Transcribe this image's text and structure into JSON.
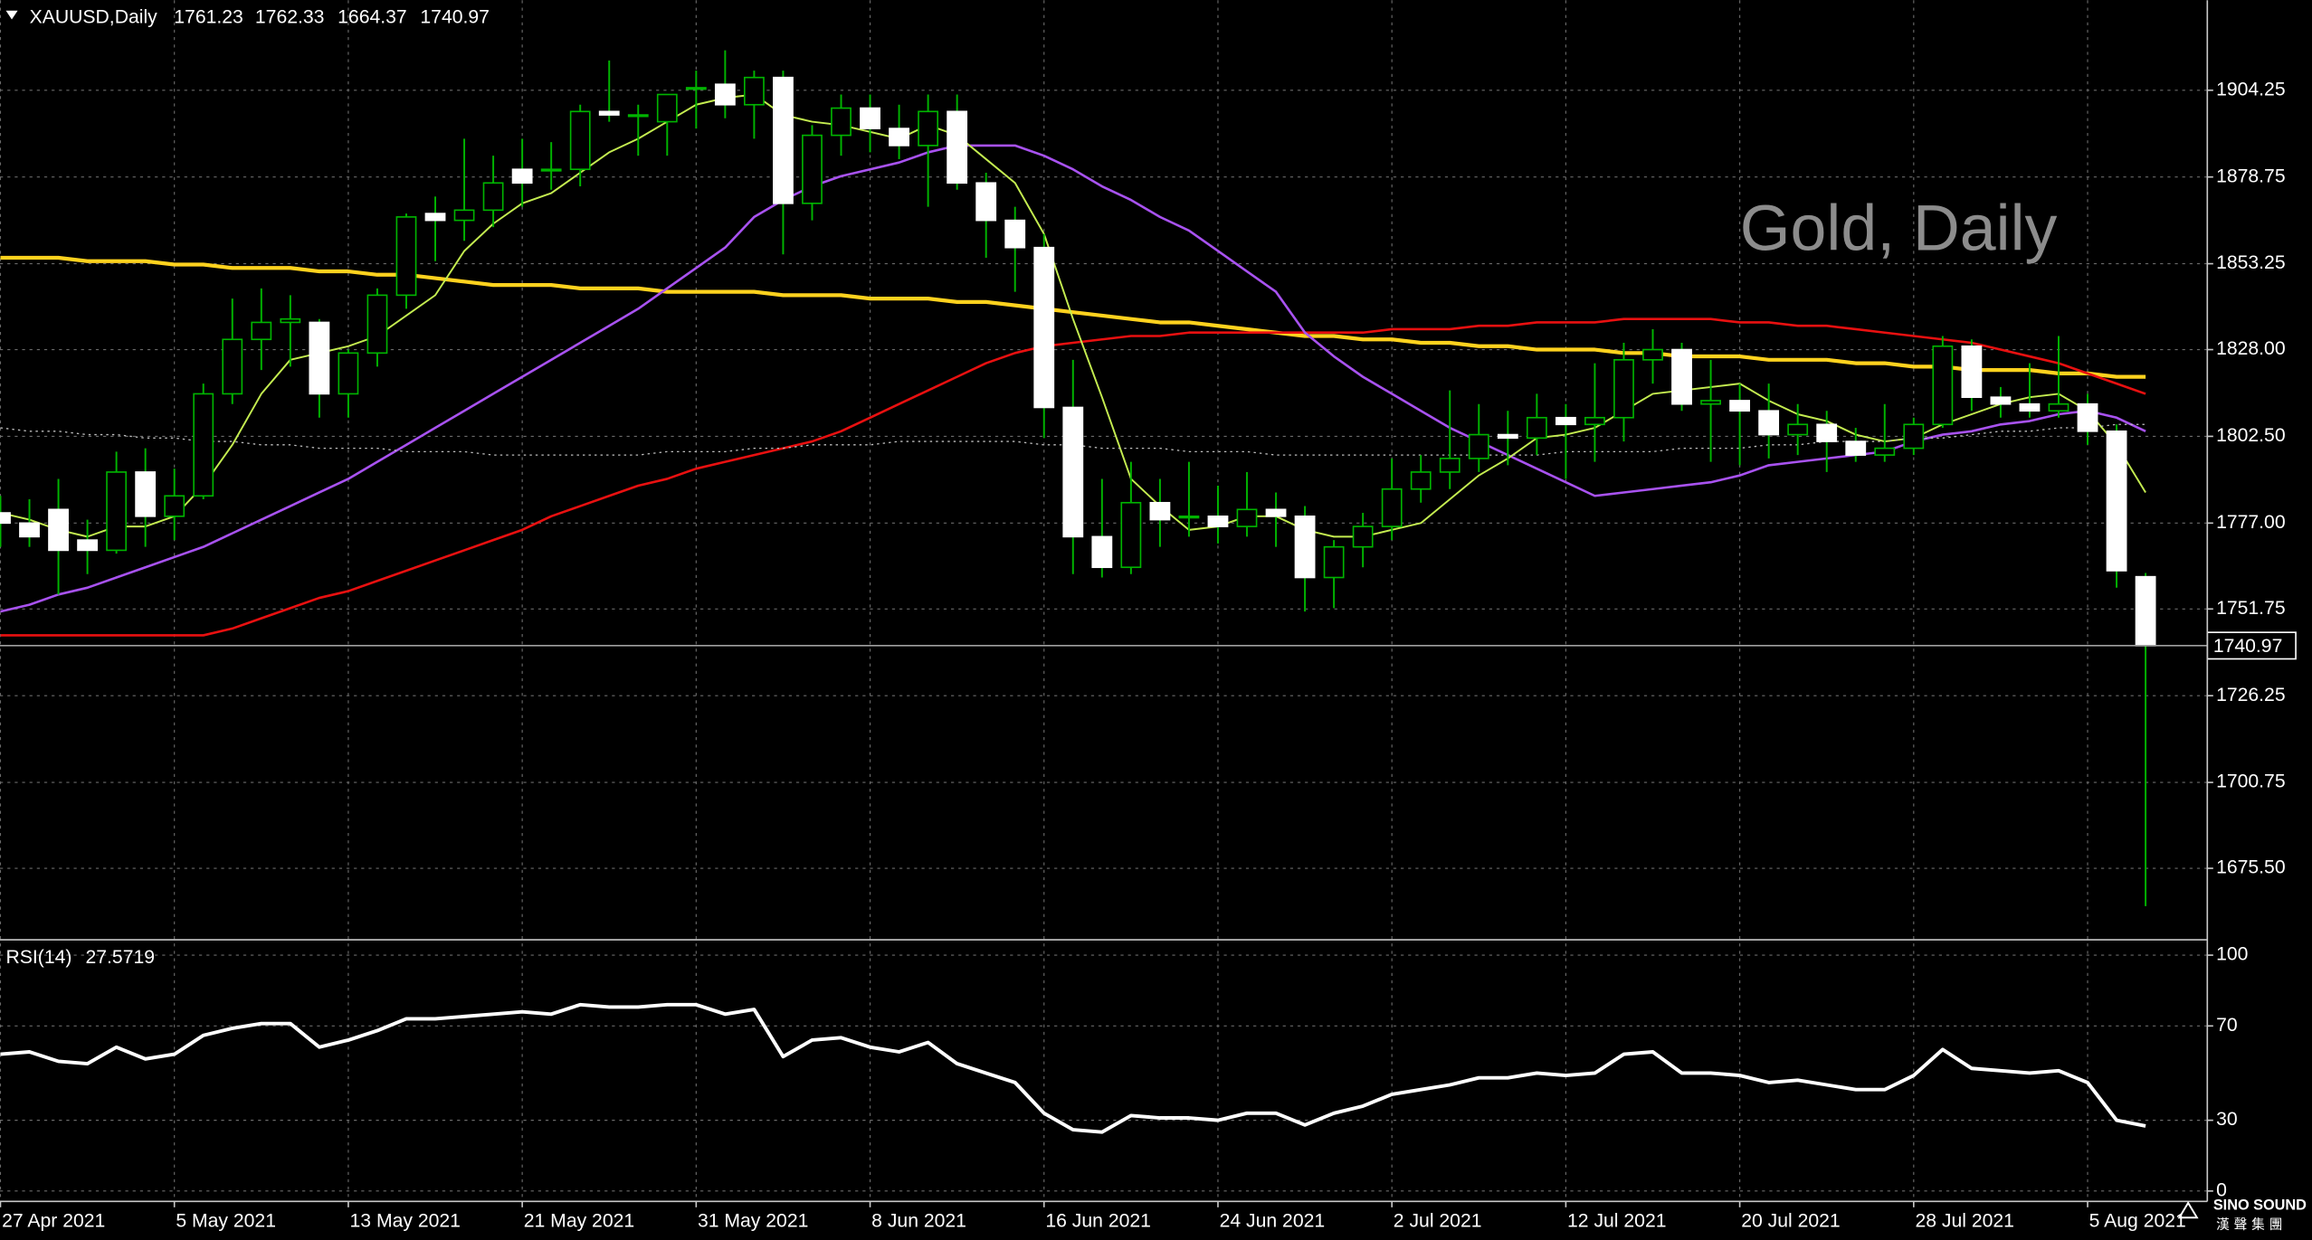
{
  "chart_data": [
    {
      "type": "candlestick",
      "title": "XAUUSD,Daily",
      "watermark": "Gold, Daily",
      "categories": [
        "27 Apr 2021",
        null,
        null,
        null,
        null,
        null,
        "5 May 2021",
        null,
        null,
        null,
        null,
        null,
        "13 May 2021",
        null,
        null,
        null,
        null,
        null,
        "21 May 2021",
        null,
        null,
        null,
        null,
        null,
        "31 May 2021",
        null,
        null,
        null,
        null,
        null,
        "8 Jun 2021",
        null,
        null,
        null,
        null,
        null,
        "16 Jun 2021",
        null,
        null,
        null,
        null,
        null,
        "24 Jun 2021",
        null,
        null,
        null,
        null,
        null,
        "2 Jul 2021",
        null,
        null,
        null,
        null,
        null,
        "12 Jul 2021",
        null,
        null,
        null,
        null,
        null,
        "20 Jul 2021",
        null,
        null,
        null,
        null,
        null,
        "28 Jul 2021",
        null,
        null,
        null,
        null,
        null,
        "5 Aug 2021",
        null,
        null
      ],
      "open": [
        1780,
        1777,
        1781,
        1772,
        1769,
        1792,
        1779,
        1785,
        1815,
        1831,
        1836,
        1836,
        1815,
        1827,
        1844,
        1868,
        1866,
        1869,
        1881,
        1881,
        1881,
        1898,
        1897,
        1895,
        1905,
        1906,
        1900,
        1908,
        1871,
        1891,
        1899,
        1893,
        1888,
        1898,
        1877,
        1866,
        1858,
        1811,
        1773,
        1764,
        1783,
        1779,
        1779,
        1776,
        1781,
        1779,
        1761,
        1770,
        1776,
        1787,
        1792,
        1796,
        1803,
        1802,
        1808,
        1806,
        1808,
        1825,
        1828,
        1812,
        1813,
        1810,
        1803,
        1806,
        1801,
        1797,
        1799,
        1806,
        1829,
        1814,
        1812,
        1810,
        1812,
        1804,
        1761.23
      ],
      "high": [
        1785,
        1784,
        1790,
        1778,
        1798,
        1799,
        1793,
        1818,
        1843,
        1846,
        1844,
        1837,
        1828,
        1846,
        1868,
        1873,
        1890,
        1885,
        1890,
        1889,
        1900,
        1913,
        1900,
        1903,
        1910,
        1916,
        1910,
        1910,
        1894,
        1903,
        1903,
        1900,
        1903,
        1903,
        1880,
        1870,
        1862,
        1825,
        1790,
        1795,
        1790,
        1795,
        1788,
        1792,
        1786,
        1782,
        1772,
        1780,
        1796,
        1797,
        1816,
        1812,
        1810,
        1815,
        1812,
        1824,
        1830,
        1834,
        1830,
        1825,
        1818,
        1818,
        1812,
        1810,
        1805,
        1812,
        1808,
        1832,
        1831,
        1817,
        1824,
        1832,
        1815,
        1806,
        1762.33
      ],
      "low": [
        1770,
        1770,
        1756,
        1762,
        1768,
        1770,
        1772,
        1784,
        1812,
        1822,
        1823,
        1808,
        1808,
        1823,
        1840,
        1854,
        1860,
        1864,
        1870,
        1875,
        1876,
        1895,
        1885,
        1885,
        1893,
        1896,
        1890,
        1856,
        1866,
        1885,
        1886,
        1884,
        1870,
        1875,
        1855,
        1845,
        1802,
        1762,
        1761,
        1762,
        1770,
        1773,
        1771,
        1773,
        1770,
        1751,
        1752,
        1764,
        1772,
        1783,
        1787,
        1792,
        1794,
        1797,
        1790,
        1795,
        1801,
        1818,
        1810,
        1795,
        1794,
        1796,
        1797,
        1792,
        1795,
        1795,
        1797,
        1805,
        1810,
        1808,
        1808,
        1808,
        1800,
        1758,
        1664.37
      ],
      "close": [
        1777,
        1773,
        1769,
        1769,
        1792,
        1779,
        1785,
        1815,
        1831,
        1836,
        1837,
        1815,
        1827,
        1844,
        1867,
        1866,
        1869,
        1877,
        1877,
        1881,
        1898,
        1897,
        1897,
        1903,
        1905,
        1900,
        1908,
        1871,
        1891,
        1899,
        1893,
        1888,
        1898,
        1877,
        1866,
        1858,
        1811,
        1773,
        1764,
        1783,
        1778,
        1779,
        1776,
        1781,
        1779,
        1761,
        1770,
        1776,
        1787,
        1792,
        1796,
        1803,
        1802,
        1808,
        1806,
        1808,
        1825,
        1828,
        1812,
        1813,
        1810,
        1803,
        1806,
        1801,
        1797,
        1799,
        1806,
        1829,
        1814,
        1812,
        1810,
        1812,
        1804,
        1763,
        1740.97
      ],
      "up_color": "#00b400",
      "down_color": "#ffffff",
      "wick_color": "#00b400",
      "up_fill": "#000000",
      "lines": [
        {
          "color": "#ffd21e",
          "width": 2.6,
          "style": "solid",
          "values": [
            1855,
            1855,
            1855,
            1854,
            1854,
            1854,
            1853,
            1853,
            1852,
            1852,
            1852,
            1851,
            1851,
            1850,
            1850,
            1849,
            1848,
            1847,
            1847,
            1847,
            1846,
            1846,
            1846,
            1845,
            1845,
            1845,
            1845,
            1844,
            1844,
            1844,
            1843,
            1843,
            1843,
            1842,
            1842,
            1841,
            1840,
            1839,
            1838,
            1837,
            1836,
            1836,
            1835,
            1834,
            1833,
            1832,
            1832,
            1831,
            1831,
            1830,
            1830,
            1829,
            1829,
            1828,
            1828,
            1828,
            1827,
            1827,
            1826,
            1826,
            1826,
            1825,
            1825,
            1825,
            1824,
            1824,
            1823,
            1823,
            1822,
            1822,
            1822,
            1821,
            1821,
            1820,
            1820
          ]
        },
        {
          "color": "#e81010",
          "width": 1.6,
          "style": "solid",
          "values": [
            1744,
            1744,
            1744,
            1744,
            1744,
            1744,
            1744,
            1744,
            1746,
            1749,
            1752,
            1755,
            1757,
            1760,
            1763,
            1766,
            1769,
            1772,
            1775,
            1779,
            1782,
            1785,
            1788,
            1790,
            1793,
            1795,
            1797,
            1799,
            1801,
            1804,
            1808,
            1812,
            1816,
            1820,
            1824,
            1827,
            1829,
            1830,
            1831,
            1832,
            1832,
            1833,
            1833,
            1833,
            1833,
            1833,
            1833,
            1833,
            1834,
            1834,
            1834,
            1835,
            1835,
            1836,
            1836,
            1836,
            1837,
            1837,
            1837,
            1837,
            1836,
            1836,
            1835,
            1835,
            1834,
            1833,
            1832,
            1831,
            1830,
            1828,
            1826,
            1824,
            1821,
            1818,
            1815
          ]
        },
        {
          "color": "#a852f0",
          "width": 1.6,
          "style": "solid",
          "values": [
            1751,
            1753,
            1756,
            1758,
            1761,
            1764,
            1767,
            1770,
            1774,
            1778,
            1782,
            1786,
            1790,
            1795,
            1800,
            1805,
            1810,
            1815,
            1820,
            1825,
            1830,
            1835,
            1840,
            1846,
            1852,
            1858,
            1867,
            1872,
            1876,
            1879,
            1881,
            1883,
            1886,
            1888,
            1888,
            1888,
            1885,
            1881,
            1876,
            1872,
            1867,
            1863,
            1857,
            1851,
            1845,
            1833,
            1826,
            1820,
            1815,
            1810,
            1805,
            1801,
            1797,
            1793,
            1789,
            1785,
            1786,
            1787,
            1788,
            1789,
            1791,
            1794,
            1795,
            1796,
            1797,
            1798,
            1801,
            1803,
            1804,
            1806,
            1807,
            1809,
            1810,
            1808,
            1804
          ]
        },
        {
          "color": "#c4ec50",
          "width": 1.2,
          "style": "solid",
          "values": [
            1780,
            1778,
            1775,
            1773,
            1776,
            1776,
            1779,
            1788,
            1800,
            1815,
            1825,
            1827,
            1829,
            1832,
            1838,
            1844,
            1857,
            1865,
            1871,
            1874,
            1880,
            1886,
            1890,
            1895,
            1900,
            1902,
            1903,
            1897,
            1895,
            1894,
            1892,
            1890,
            1894,
            1891,
            1884,
            1877,
            1862,
            1837,
            1814,
            1790,
            1782,
            1775,
            1776,
            1779,
            1779,
            1775,
            1773,
            1773,
            1775,
            1777,
            1784,
            1791,
            1796,
            1802,
            1803,
            1805,
            1810,
            1815,
            1816,
            1817,
            1818,
            1813,
            1809,
            1807,
            1803,
            1801,
            1802,
            1806,
            1809,
            1812,
            1814,
            1815,
            1810,
            1800,
            1786
          ]
        },
        {
          "color": "#bdbdbd",
          "width": 0.8,
          "style": "dotted",
          "values": [
            1805,
            1804,
            1804,
            1803,
            1803,
            1802,
            1802,
            1801,
            1801,
            1800,
            1800,
            1799,
            1799,
            1799,
            1798,
            1798,
            1798,
            1797,
            1797,
            1797,
            1797,
            1797,
            1797,
            1798,
            1798,
            1798,
            1799,
            1799,
            1800,
            1800,
            1800,
            1801,
            1801,
            1801,
            1801,
            1801,
            1800,
            1800,
            1799,
            1799,
            1799,
            1798,
            1798,
            1798,
            1797,
            1797,
            1797,
            1797,
            1797,
            1797,
            1797,
            1797,
            1797,
            1797,
            1798,
            1798,
            1798,
            1798,
            1799,
            1799,
            1799,
            1800,
            1800,
            1801,
            1801,
            1801,
            1802,
            1802,
            1803,
            1804,
            1804,
            1805,
            1805,
            1806,
            1806
          ]
        }
      ],
      "ylim": [
        1654.7,
        1930.7
      ],
      "yticks": [
        1904.25,
        1878.75,
        1853.25,
        {
          "value": 1828,
          "label": "1828.00"
        },
        {
          "value": 1802.5,
          "label": "1802.50"
        },
        {
          "value": 1777,
          "label": "1777.00"
        },
        1751.75,
        1726.25,
        1700.75,
        {
          "value": 1675.5,
          "label": "1675.50"
        }
      ],
      "grid": true
    },
    {
      "type": "line",
      "title": "RSI(14)",
      "color": "#ffffff",
      "values": [
        58,
        59,
        55,
        54,
        61,
        56,
        58,
        66,
        69,
        71,
        71,
        61,
        64,
        68,
        73,
        73,
        74,
        75,
        76,
        75,
        79,
        78,
        78,
        79,
        79,
        75,
        77,
        57,
        64,
        65,
        61,
        59,
        63,
        54,
        50,
        46,
        33,
        26,
        25,
        32,
        31,
        31,
        30,
        33,
        33,
        28,
        33,
        36,
        41,
        43,
        45,
        48,
        48,
        50,
        49,
        50,
        58,
        59,
        50,
        50,
        49,
        46,
        47,
        45,
        43,
        43,
        49,
        60,
        52,
        51,
        50,
        51,
        46,
        30,
        27.5719
      ],
      "ylim": [
        -4.4,
        106.2
      ],
      "yticks": [
        100,
        70,
        30,
        0
      ]
    }
  ],
  "logo": {
    "name": "SINO SOUND",
    "subtitle": "漢聲集團"
  }
}
